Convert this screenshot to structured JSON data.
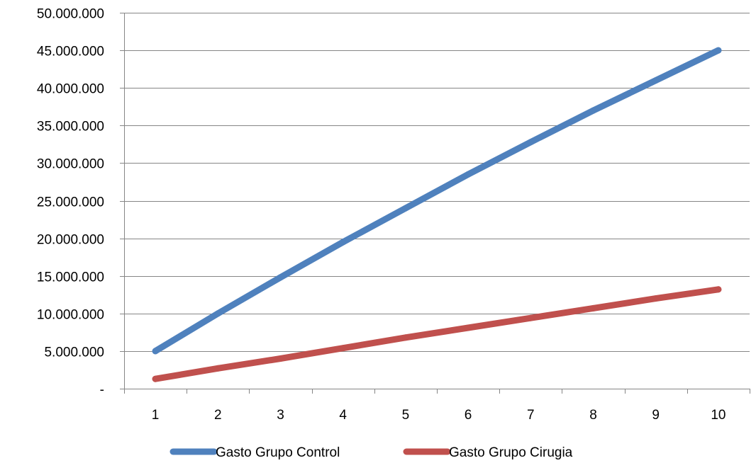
{
  "chart_data": {
    "type": "line",
    "title": "",
    "xlabel": "",
    "ylabel": "",
    "x": [
      1,
      2,
      3,
      4,
      5,
      6,
      7,
      8,
      9,
      10
    ],
    "x_tick_labels": [
      "1",
      "2",
      "3",
      "4",
      "5",
      "6",
      "7",
      "8",
      "9",
      "10"
    ],
    "ylim": [
      0,
      50000000
    ],
    "y_ticks": [
      0,
      5000000,
      10000000,
      15000000,
      20000000,
      25000000,
      30000000,
      35000000,
      40000000,
      45000000,
      50000000
    ],
    "y_tick_labels": [
      "-",
      "5.000.000",
      "10.000.000",
      "15.000.000",
      "20.000.000",
      "25.000.000",
      "30.000.000",
      "35.000.000",
      "40.000.000",
      "45.000.000",
      "50.000.000"
    ],
    "grid": "horizontal",
    "legend_position": "bottom",
    "series": [
      {
        "name": "Gasto Grupo Control",
        "color": "#4f81bd",
        "values": [
          5000000,
          10000000,
          14800000,
          19500000,
          24000000,
          28500000,
          32800000,
          37000000,
          41000000,
          45000000
        ]
      },
      {
        "name": "Gasto Grupo Cirugia",
        "color": "#c0504d",
        "values": [
          1300000,
          2700000,
          4000000,
          5400000,
          6800000,
          8100000,
          9400000,
          10700000,
          12000000,
          13200000
        ]
      }
    ]
  }
}
